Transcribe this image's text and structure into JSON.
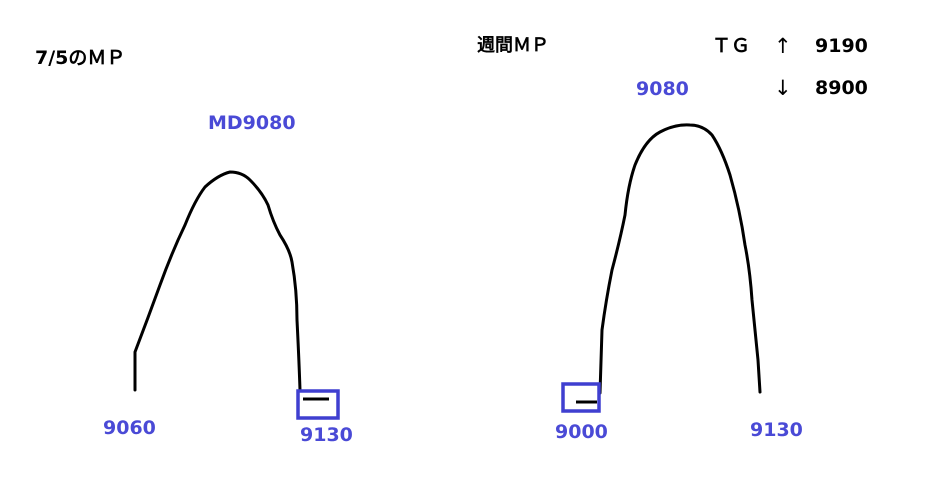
{
  "left": {
    "title": "7/5のＭＰ",
    "top_label": "MD9080",
    "left_label": "9060",
    "right_label": "9130"
  },
  "right": {
    "title": "週間ＭＰ",
    "top_label": "9080",
    "left_label": "9000",
    "right_label": "9130"
  },
  "tg": {
    "label": "ＴＧ",
    "up_arrow": "↑",
    "up_value": "9190",
    "down_arrow": "↓",
    "down_value": "8900"
  },
  "colors": {
    "ink": "#000000",
    "annotation": "#4a4ad6",
    "box": "#3f3fd0"
  }
}
